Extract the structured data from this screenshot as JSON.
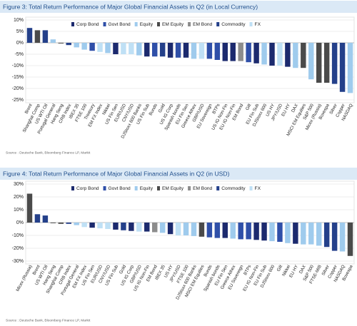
{
  "chart_data": [
    {
      "type": "bar",
      "title": "Figure 3: Total Return Performance of Major Global Financial Assets in Q2 (in Local Currency)",
      "source": "Source : Deutsche Bank, Bloomberg Finance LP, Markit",
      "series": [
        {
          "name": "Corp Bond",
          "color": "#1c2a6e"
        },
        {
          "name": "Govt Bond",
          "color": "#2f4fa8"
        },
        {
          "name": "Equity",
          "color": "#9fcbed"
        },
        {
          "name": "EM Equity",
          "color": "#4a4a4a"
        },
        {
          "name": "EM Bond",
          "color": "#8c8c8c"
        },
        {
          "name": "Commodity",
          "color": "#24408a"
        },
        {
          "name": "FX",
          "color": "#bfe0f5"
        }
      ],
      "categories": [
        "Brent",
        "Shanghai Comp",
        "US WTI Oil",
        "Portugal General",
        "Hang Seng",
        "CRB Index",
        "IBEX 35",
        "FTSE 100",
        "Treasury",
        "EM FX Index",
        "Nikkei",
        "US Fin Sen",
        "EUR/USD",
        "CNY/USD",
        "DJStoxx 600 Banks",
        "US Fin Sub",
        "Bunds",
        "Gold",
        "US IG Corp",
        "Spanish bonds",
        "EU Fin Sen",
        "Greece Athex",
        "GBP/USD",
        "EU Sovereign",
        "BTPs",
        "US IG Non-Fin",
        "EU IG Non-Fin",
        "EM Bond",
        "Gilt",
        "EU Fin Sub",
        "DJStoxx 600",
        "US HY",
        "JPY/USD",
        "EU HY",
        "DAX",
        "MSCI EM Equities",
        "S&P 500",
        "Micex (Russia)",
        "Bovespa",
        "Silver",
        "Copper",
        "NASDAQ"
      ],
      "values": [
        6.5,
        5.5,
        5.5,
        1.5,
        -0.3,
        -1,
        -2,
        -3,
        -3.5,
        -4,
        -4.5,
        -5,
        -5,
        -5,
        -5.5,
        -6,
        -6,
        -6,
        -6.5,
        -6.5,
        -6.5,
        -7,
        -7,
        -7,
        -7.5,
        -8,
        -8,
        -8,
        -8.5,
        -9,
        -9.5,
        -10,
        -10,
        -10.5,
        -11,
        -11,
        -16,
        -17.5,
        -17.5,
        -18,
        -21.5,
        -22
      ],
      "series_index": [
        5,
        3,
        5,
        2,
        3,
        5,
        2,
        2,
        1,
        6,
        2,
        0,
        6,
        6,
        2,
        0,
        1,
        5,
        0,
        1,
        0,
        2,
        6,
        1,
        1,
        0,
        0,
        4,
        1,
        0,
        2,
        0,
        6,
        0,
        2,
        3,
        2,
        3,
        3,
        5,
        5,
        2
      ],
      "ylim": [
        -25,
        10
      ],
      "yticks": [
        {
          "value": 10,
          "label": "10%"
        },
        {
          "value": 5,
          "label": "5%"
        },
        {
          "value": 0,
          "label": "0%"
        },
        {
          "value": -5,
          "label": "-5%"
        },
        {
          "value": -10,
          "label": "-10%"
        },
        {
          "value": -15,
          "label": "-15%"
        },
        {
          "value": -20,
          "label": "-20%"
        },
        {
          "value": -25,
          "label": "-25%"
        }
      ],
      "grid": true
    },
    {
      "type": "bar",
      "title": "Figure 4: Total Return Performance of Major Global Financial Assets in Q2 (in USD)",
      "source": "Source : Deutsche Bank, Bloomberg Finance LP, Markit",
      "series": [
        {
          "name": "Corp Bond",
          "color": "#1c2a6e"
        },
        {
          "name": "Govt Bond",
          "color": "#2f4fa8"
        },
        {
          "name": "Equity",
          "color": "#9fcbed"
        },
        {
          "name": "EM Equity",
          "color": "#4a4a4a"
        },
        {
          "name": "EM Bond",
          "color": "#8c8c8c"
        },
        {
          "name": "Commodity",
          "color": "#24408a"
        },
        {
          "name": "FX",
          "color": "#bfe0f5"
        }
      ],
      "categories": [
        "Micex (Russia)",
        "Brent",
        "US WTI Oil",
        "Hang Seng",
        "Shanghai Comp",
        "CRB Index",
        "Portugal General",
        "EM FX Index",
        "US Fin Sen",
        "EUR/USD",
        "CNY/USD",
        "US Fin Sub",
        "Gold",
        "US IG Corp",
        "GBP/USD",
        "US IG Non-Fin",
        "EM Bond",
        "IBEX 35",
        "US HY",
        "JPY/USD",
        "FTSE 100",
        "DJStoxx 600 Banks",
        "MSCI EM Equities",
        "Bunds",
        "Spanish bonds",
        "EU Fin Sen",
        "Greece Athex",
        "EU Sovereign",
        "BTPs",
        "EU IG Non-Fin",
        "EU Fin Sub",
        "DJStoxx 600",
        "Gilt",
        "Nikkei",
        "EU HY",
        "DAX",
        "S&P 500",
        "FTSE-MIB",
        "Silver",
        "Copper",
        "NASDAQ",
        "Bovespa"
      ],
      "values": [
        22.5,
        6.5,
        5.5,
        -0.5,
        -1,
        -1,
        -2,
        -3.5,
        -4,
        -4.5,
        -5,
        -5.5,
        -6,
        -6.5,
        -7,
        -7,
        -7.5,
        -8,
        -9,
        -10,
        -10,
        -10.5,
        -11,
        -11.5,
        -12,
        -12,
        -12.5,
        -13,
        -13,
        -13.5,
        -14,
        -14.5,
        -15,
        -16,
        -16.5,
        -17,
        -17,
        -18,
        -19,
        -22,
        -22.5,
        -26
      ],
      "series_index": [
        3,
        5,
        5,
        3,
        3,
        5,
        2,
        6,
        0,
        6,
        6,
        0,
        5,
        0,
        6,
        0,
        4,
        2,
        0,
        6,
        2,
        2,
        3,
        1,
        1,
        0,
        2,
        1,
        1,
        0,
        0,
        2,
        1,
        2,
        0,
        2,
        2,
        2,
        5,
        5,
        2,
        3
      ],
      "ylim": [
        -30,
        30
      ],
      "yticks": [
        {
          "value": 30,
          "label": "30%"
        },
        {
          "value": 20,
          "label": "20%"
        },
        {
          "value": 10,
          "label": "10%"
        },
        {
          "value": 0,
          "label": "0%"
        },
        {
          "value": -10,
          "label": "-10%"
        },
        {
          "value": -20,
          "label": "-20%"
        },
        {
          "value": -30,
          "label": "-30%"
        }
      ],
      "grid": true
    }
  ]
}
